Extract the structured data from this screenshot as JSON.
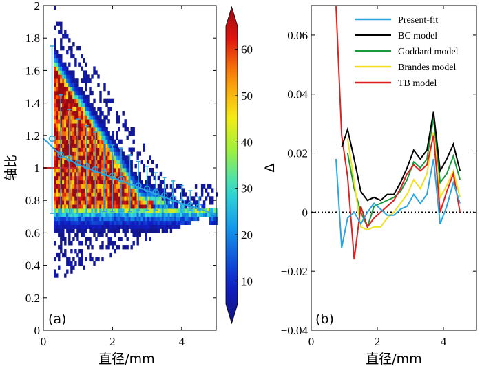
{
  "chart_data": [
    {
      "type": "heatmap",
      "panel_label": "(a)",
      "xlabel": "直径/mm",
      "ylabel": "轴比",
      "xlim": [
        0,
        5
      ],
      "ylim": [
        0,
        2
      ],
      "xticks": [
        "0",
        "2",
        "4"
      ],
      "yticks": [
        "0",
        "0.2",
        "0.4",
        "0.6",
        "0.8",
        "1",
        "1.2",
        "1.4",
        "1.6",
        "1.8",
        "2"
      ],
      "colorbar": {
        "min": 5,
        "max": 65,
        "ticks": [
          "10",
          "20",
          "30",
          "40",
          "50",
          "60"
        ]
      },
      "fit_curve": {
        "x": [
          0,
          0.5,
          1,
          1.5,
          2,
          2.5,
          3,
          3.5,
          4,
          4.5,
          5
        ],
        "y": [
          1.18,
          1.08,
          1.02,
          0.98,
          0.94,
          0.9,
          0.86,
          0.82,
          0.78,
          0.75,
          0.71
        ]
      },
      "error_bars": {
        "x": [
          0.25,
          0.5,
          0.75,
          1.0,
          1.25,
          1.5,
          1.75,
          2.0,
          2.25,
          2.5,
          2.75,
          3.0,
          3.25,
          3.5,
          3.75,
          4.0,
          4.25,
          4.5
        ],
        "y": [
          1.18,
          1.08,
          1.06,
          1.03,
          1.01,
          0.99,
          0.97,
          0.95,
          0.93,
          0.91,
          0.89,
          0.87,
          0.85,
          0.83,
          0.81,
          0.79,
          0.77,
          0.76
        ],
        "lower": [
          0.72,
          0.72,
          0.72,
          0.72,
          0.72,
          0.72,
          0.73,
          0.73,
          0.73,
          0.73,
          0.74,
          0.74,
          0.74,
          0.75,
          0.75,
          0.75,
          0.74,
          0.74
        ],
        "upper": [
          1.75,
          1.45,
          1.36,
          1.3,
          1.26,
          1.22,
          1.17,
          1.14,
          1.12,
          1.08,
          1.04,
          1.01,
          0.97,
          0.94,
          0.92,
          0.89,
          0.86,
          0.82
        ]
      },
      "reference_line": {
        "y": 1.0,
        "x_end": 1.0,
        "color": "#d22222"
      }
    },
    {
      "type": "line",
      "panel_label": "(b)",
      "xlabel": "直径/mm",
      "ylabel": "Δ",
      "xlim": [
        0,
        5
      ],
      "ylim": [
        -0.04,
        0.07
      ],
      "xticks": [
        "0",
        "2",
        "4"
      ],
      "yticks": [
        "−0.04",
        "−0.02",
        "0",
        "0.02",
        "0.04",
        "0.06"
      ],
      "zero_line": true,
      "x": [
        0.75,
        0.92,
        1.1,
        1.3,
        1.5,
        1.7,
        1.9,
        2.1,
        2.3,
        2.5,
        2.7,
        2.9,
        3.1,
        3.3,
        3.5,
        3.7,
        3.9,
        4.1,
        4.3,
        4.5
      ],
      "series": [
        {
          "name": "Present-fit",
          "color": "#2aa6de",
          "values": [
            0.018,
            -0.012,
            -0.002,
            0.0,
            -0.004,
            0.0,
            0.003,
            0.001,
            -0.001,
            -0.001,
            0.001,
            0.002,
            0.006,
            0.003,
            0.006,
            0.018,
            -0.004,
            0.002,
            0.01,
            0.003
          ]
        },
        {
          "name": "BC model",
          "color": "#000000",
          "values": [
            null,
            0.022,
            0.028,
            0.018,
            0.007,
            0.004,
            0.005,
            0.004,
            0.006,
            0.006,
            0.01,
            0.015,
            0.021,
            0.018,
            0.021,
            0.034,
            0.014,
            0.018,
            0.023,
            0.014
          ]
        },
        {
          "name": "Goddard model",
          "color": "#1a9a3a",
          "values": [
            null,
            null,
            0.02,
            0.008,
            0.0,
            -0.005,
            0.002,
            0.003,
            0.004,
            0.005,
            0.007,
            0.011,
            0.017,
            0.015,
            0.018,
            0.032,
            0.01,
            0.013,
            0.019,
            0.011
          ]
        },
        {
          "name": "Brandes model",
          "color": "#f0e020",
          "values": [
            null,
            null,
            0.025,
            0.01,
            -0.005,
            -0.006,
            -0.005,
            -0.005,
            -0.002,
            0.0,
            0.003,
            0.006,
            0.011,
            0.008,
            0.013,
            0.027,
            0.005,
            0.009,
            0.014,
            0.005
          ]
        },
        {
          "name": "TB model",
          "color": "#dd2020",
          "values": [
            0.07,
            0.026,
            0.012,
            -0.016,
            0.002,
            -0.005,
            -0.002,
            0.0,
            0.002,
            0.004,
            0.008,
            0.013,
            0.016,
            0.014,
            0.016,
            0.026,
            0.0,
            0.007,
            0.013,
            0.0
          ]
        }
      ]
    }
  ]
}
